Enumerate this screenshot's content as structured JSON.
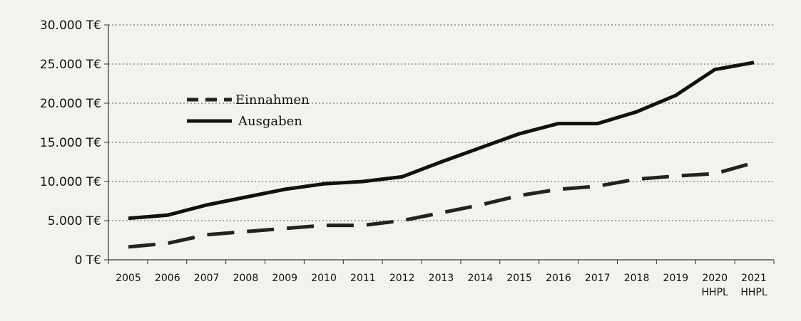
{
  "chart_data": {
    "type": "line",
    "title": "",
    "xlabel": "",
    "ylabel": "",
    "ylim": [
      0,
      30000
    ],
    "y_ticks": [
      0,
      5000,
      10000,
      15000,
      20000,
      25000,
      30000
    ],
    "y_tick_labels": [
      "0 T€",
      "5.000 T€",
      "10.000 T€",
      "15.000 T€",
      "20.000 T€",
      "25.000 T€",
      "30.000 T€"
    ],
    "categories": [
      "2005",
      "2006",
      "2007",
      "2008",
      "2009",
      "2010",
      "2011",
      "2012",
      "2013",
      "2014",
      "2015",
      "2016",
      "2017",
      "2018",
      "2019",
      "2020",
      "2021"
    ],
    "category_sublabels": [
      "",
      "",
      "",
      "",
      "",
      "",
      "",
      "",
      "",
      "",
      "",
      "",
      "",
      "",
      "",
      "HHPL",
      "HHPL"
    ],
    "grid": "horizontal dotted",
    "legend_position": "top-left",
    "series": [
      {
        "name": "Einnahmen",
        "style": "dashed",
        "color": "#222222",
        "values": [
          1650,
          2100,
          3200,
          3600,
          4000,
          4400,
          4400,
          5000,
          6000,
          7000,
          8200,
          9000,
          9400,
          10300,
          10700,
          11000,
          12400
        ]
      },
      {
        "name": "Ausgaben",
        "style": "solid",
        "color": "#111111",
        "values": [
          5300,
          5700,
          7000,
          8000,
          9000,
          9700,
          10000,
          10600,
          12500,
          14300,
          16100,
          17400,
          17400,
          18900,
          21000,
          24300,
          25200
        ]
      }
    ]
  }
}
